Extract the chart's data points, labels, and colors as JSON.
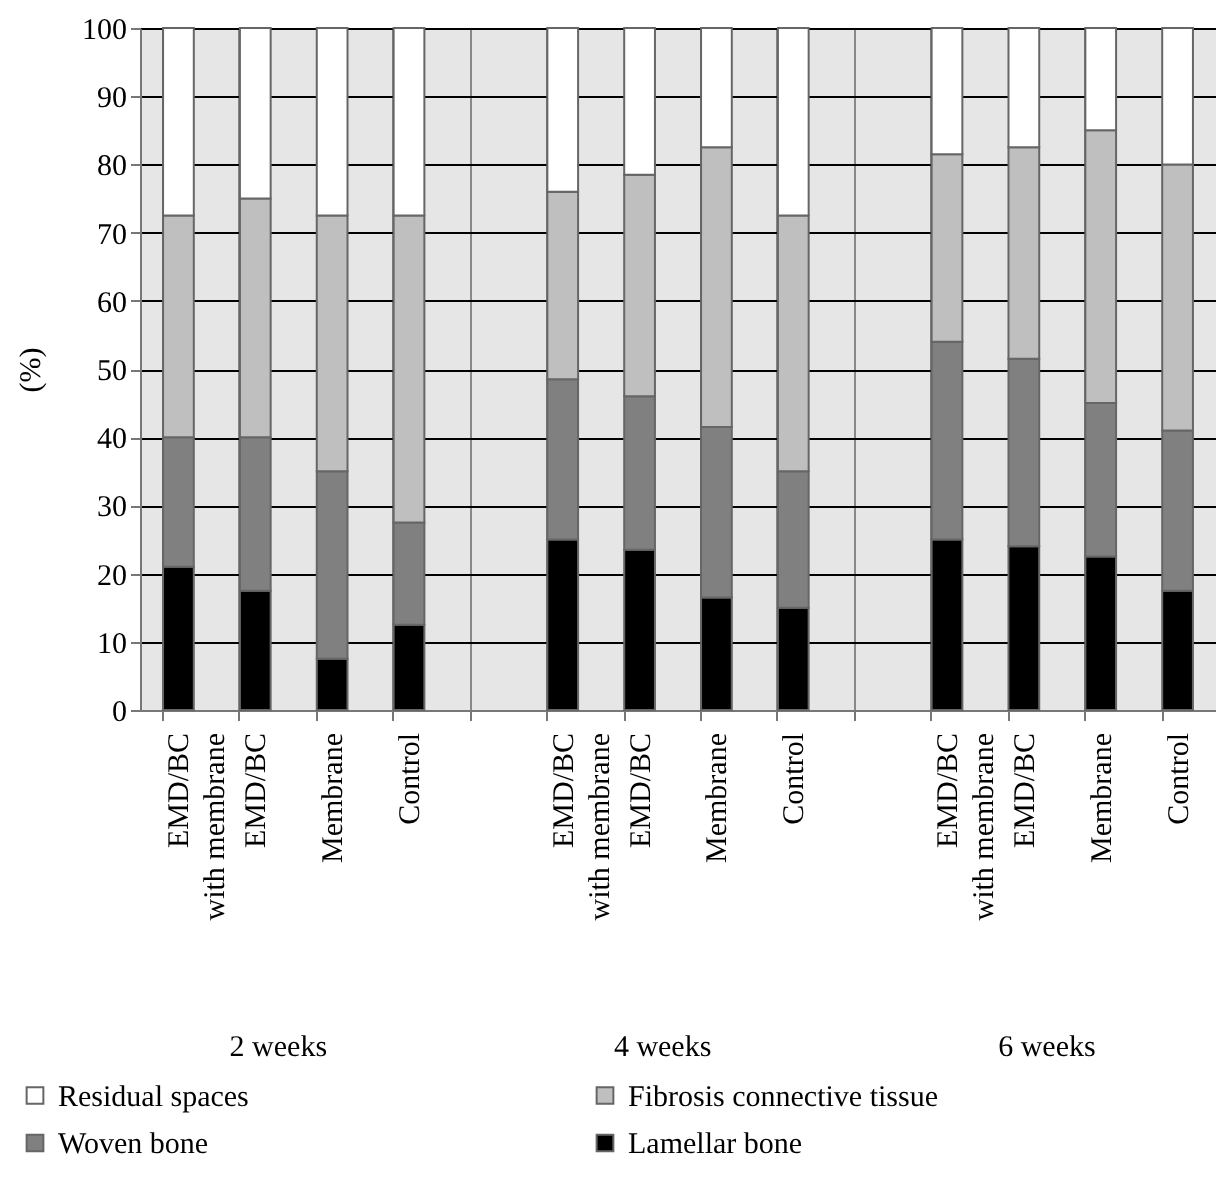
{
  "chart_data": {
    "type": "bar",
    "stacked": true,
    "ylabel": "(%)",
    "categories": [
      "EMD/BC with membrane",
      "EMD/BC",
      "Membrane",
      "Control",
      null,
      "EMD/BC with membrane",
      "EMD/BC",
      "Membrane",
      "Control",
      null,
      "EMD/BC with membrane",
      "EMD/BC",
      "Membrane",
      "Control"
    ],
    "series": [
      {
        "name": "Lamellar bone",
        "color": "#000000",
        "values": [
          21,
          17.5,
          7.5,
          12.5,
          null,
          25,
          23.5,
          16.5,
          15,
          null,
          25,
          24,
          22.5,
          17.5
        ]
      },
      {
        "name": "Woven bone",
        "color": "#808080",
        "values": [
          19,
          22.5,
          27.5,
          15,
          null,
          23.5,
          22.5,
          25,
          20,
          null,
          29,
          27.5,
          22.5,
          23.5
        ]
      },
      {
        "name": "Fibrosis connective tissue",
        "color": "#bfbfbf",
        "values": [
          32.5,
          35,
          37.5,
          45,
          null,
          27.5,
          32.5,
          41,
          37.5,
          null,
          27.5,
          31,
          40,
          39
        ]
      },
      {
        "name": "Residual spaces",
        "color": "#ffffff",
        "values": [
          27.5,
          25,
          27.5,
          27.5,
          null,
          24,
          21.5,
          17.5,
          27.5,
          null,
          18.5,
          17.5,
          15,
          20
        ]
      }
    ],
    "ylim": [
      0,
      100
    ],
    "yticks": [
      0,
      10,
      20,
      30,
      40,
      50,
      60,
      70,
      80,
      90,
      100
    ],
    "grid": true,
    "legend": "bottom",
    "annotations": [
      "2 weeks",
      "4 weeks",
      "6 weeks"
    ]
  }
}
